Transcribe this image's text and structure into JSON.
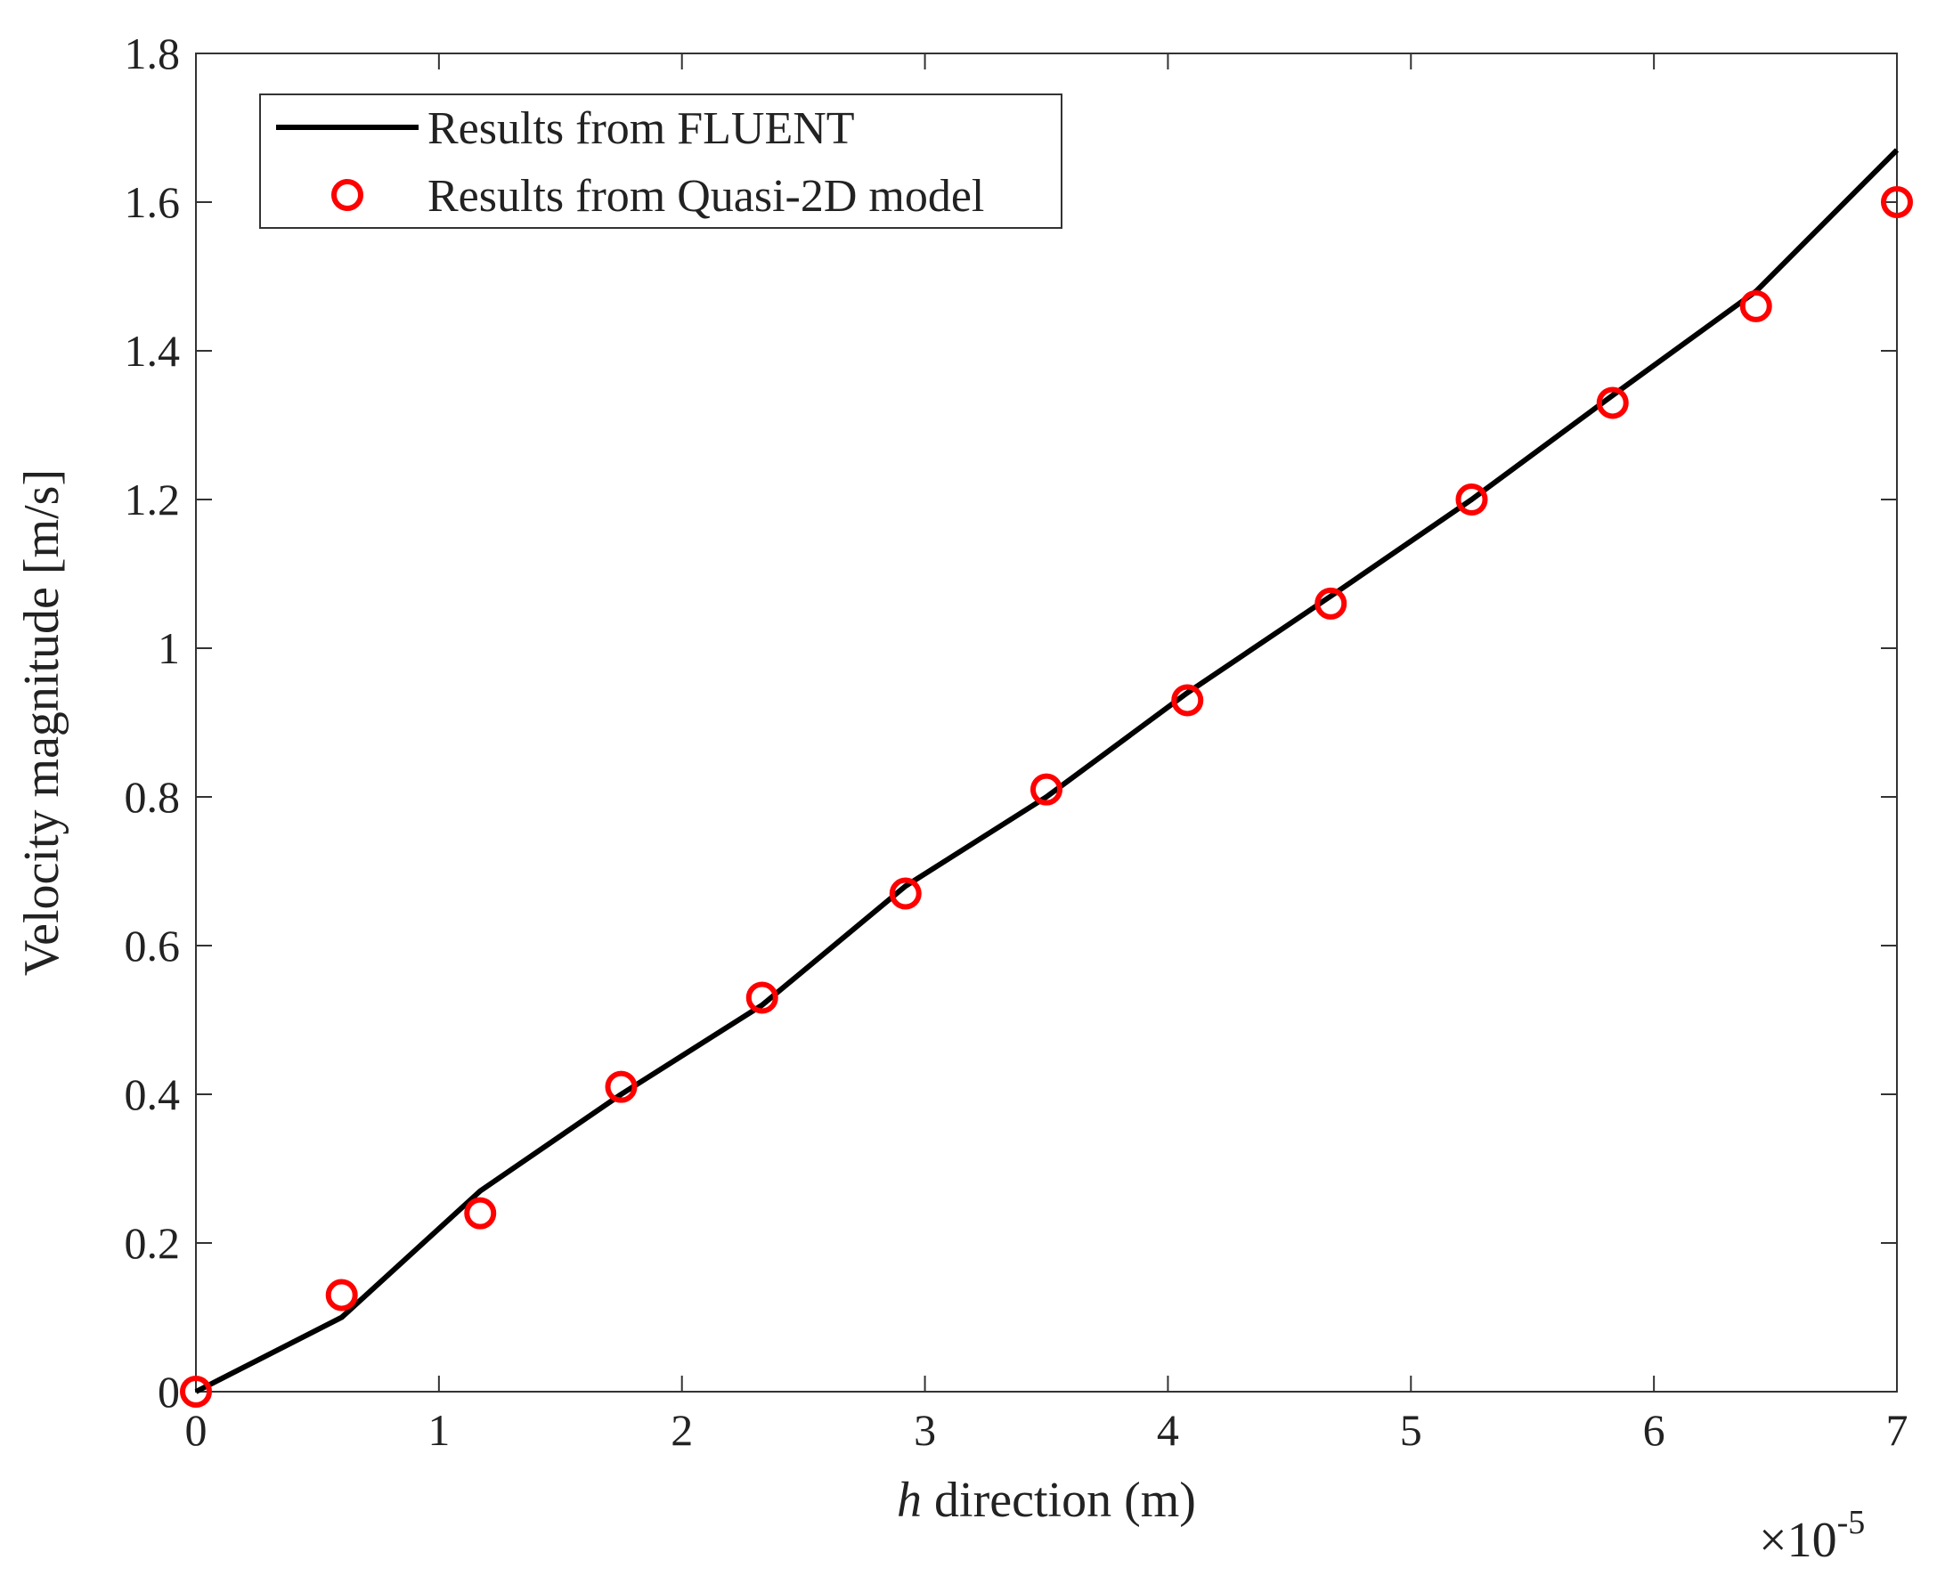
{
  "chart_data": {
    "type": "line",
    "title": "",
    "xlabel": {
      "variable": "h",
      "text": " direction (m)"
    },
    "ylabel": "Velocity magnitude [m/s]",
    "x_multiplier": {
      "prefix": "×10",
      "exponent": "-5"
    },
    "xlim": [
      0,
      7e-05
    ],
    "ylim": [
      0,
      1.8
    ],
    "x_ticks": [
      0,
      1e-05,
      2e-05,
      3e-05,
      4e-05,
      5e-05,
      6e-05,
      7e-05
    ],
    "x_tick_labels": [
      "0",
      "1",
      "2",
      "3",
      "4",
      "5",
      "6",
      "7"
    ],
    "y_ticks": [
      0,
      0.2,
      0.4,
      0.6,
      0.8,
      1.0,
      1.2,
      1.4,
      1.6,
      1.8
    ],
    "y_tick_labels": [
      "0",
      "0.2",
      "0.4",
      "0.6",
      "0.8",
      "1",
      "1.2",
      "1.4",
      "1.6",
      "1.8"
    ],
    "grid": false,
    "legend_position": "top-left",
    "series": [
      {
        "name": "Results from FLUENT",
        "style": "line",
        "color": "#000000",
        "x": [
          0,
          6e-06,
          1.17e-05,
          1.75e-05,
          2.33e-05,
          2.92e-05,
          3.5e-05,
          4.08e-05,
          4.67e-05,
          5.25e-05,
          5.83e-05,
          6.42e-05,
          7e-05
        ],
        "y": [
          0,
          0.1,
          0.27,
          0.4,
          0.52,
          0.68,
          0.8,
          0.94,
          1.07,
          1.2,
          1.34,
          1.48,
          1.67
        ]
      },
      {
        "name": "Results from Quasi-2D model",
        "style": "marker-circle",
        "color": "#ff0000",
        "x": [
          0,
          6e-06,
          1.17e-05,
          1.75e-05,
          2.33e-05,
          2.92e-05,
          3.5e-05,
          4.08e-05,
          4.67e-05,
          5.25e-05,
          5.83e-05,
          6.42e-05,
          7e-05
        ],
        "y": [
          0,
          0.13,
          0.24,
          0.41,
          0.53,
          0.67,
          0.81,
          0.93,
          1.06,
          1.2,
          1.33,
          1.46,
          1.6
        ]
      }
    ]
  }
}
